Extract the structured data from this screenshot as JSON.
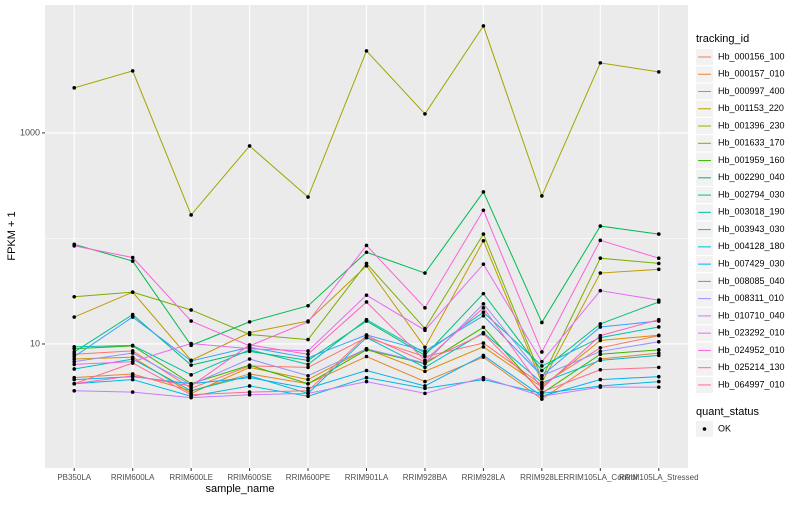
{
  "chart_data": {
    "type": "line",
    "x_label": "sample_name",
    "y_label": "FPKM + 1",
    "categories": [
      "PB350LA",
      "RRIM600LA",
      "RRIM600LE",
      "RRIM600SE",
      "RRIM600PE",
      "RRIM901LA",
      "RRIM928BA",
      "RRIM928LA",
      "RRIM928LE",
      "RRIM105LA_Control",
      "RRIM105LA_Stressed"
    ],
    "ylim": [
      0.668,
      16300
    ],
    "yticks": [
      10,
      1000
    ],
    "log_y": true,
    "grid": true,
    "legend_title": "tracking_id",
    "quant_status": {
      "title": "quant_status",
      "labels": [
        "OK"
      ]
    },
    "point_color": "#000000",
    "series": [
      {
        "name": "Hb_000156_100",
        "color": "#F8766D",
        "values": [
          8.0,
          8.6,
          3.8,
          6.2,
          6.0,
          11.5,
          7.6,
          10.2,
          4.1,
          9.2,
          12
        ]
      },
      {
        "name": "Hb_000157_010",
        "color": "#EA8331",
        "values": [
          4.8,
          5.2,
          3.6,
          5.2,
          4.2,
          7.6,
          4.4,
          7.5,
          3.0,
          7.2,
          8.2
        ]
      },
      {
        "name": "Hb_000997_400",
        "color": "#D89000",
        "values": [
          7.2,
          7.5,
          3.4,
          6.0,
          4.6,
          9.0,
          5.5,
          9.4,
          3.9,
          10.8,
          12.1
        ]
      },
      {
        "name": "Hb_001153_220",
        "color": "#C09B00",
        "values": [
          18,
          31,
          7.0,
          12.8,
          16.5,
          55,
          9.3,
          95,
          4.3,
          47,
          51
        ]
      },
      {
        "name": "Hb_001396_230",
        "color": "#A3A500",
        "values": [
          2673,
          3870,
          167,
          753,
          247,
          5985,
          1514,
          10330,
          253,
          4610,
          3785
        ]
      },
      {
        "name": "Hb_001633_170",
        "color": "#7CAE00",
        "values": [
          28,
          31,
          21,
          12.3,
          11,
          58,
          14,
          110,
          4.7,
          65,
          58
        ]
      },
      {
        "name": "Hb_001959_160",
        "color": "#39B600",
        "values": [
          9.0,
          9.6,
          4.2,
          6.3,
          4.2,
          8.8,
          6.5,
          14.4,
          3.4,
          8.0,
          8.8
        ]
      },
      {
        "name": "Hb_002290_040",
        "color": "#00BB4E",
        "values": [
          88,
          61,
          9.7,
          16.2,
          23,
          74,
          47,
          276,
          16.0,
          131,
          110
        ]
      },
      {
        "name": "Hb_002794_030",
        "color": "#00BF7D",
        "values": [
          8.4,
          19,
          6.3,
          8.5,
          7.0,
          16.5,
          7.8,
          30,
          5.6,
          15.5,
          25
        ]
      },
      {
        "name": "Hb_003018_190",
        "color": "#00C1A3",
        "values": [
          9.4,
          9.7,
          5.1,
          8.8,
          6.4,
          17,
          8.2,
          20,
          6.2,
          11.5,
          14.5
        ]
      },
      {
        "name": "Hb_003943_030",
        "color": "#00BFC4",
        "values": [
          5.8,
          7.2,
          3.6,
          5.0,
          3.4,
          11.5,
          6.0,
          12.8,
          4.3,
          7.0,
          7.8
        ]
      },
      {
        "name": "Hb_004128_180",
        "color": "#00BAE0",
        "values": [
          4.2,
          4.6,
          3.2,
          4.0,
          3.2,
          4.8,
          3.8,
          4.6,
          3.4,
          4.0,
          4.4
        ]
      },
      {
        "name": "Hb_007429_030",
        "color": "#00B0F6",
        "values": [
          4.6,
          4.9,
          4.2,
          4.8,
          3.8,
          5.6,
          4.0,
          7.8,
          3.2,
          4.6,
          4.9
        ]
      },
      {
        "name": "Hb_008085_040",
        "color": "#35A2FF",
        "values": [
          7.6,
          18,
          6.9,
          9.3,
          7.4,
          12.2,
          8.6,
          18.5,
          5.0,
          14.5,
          16.5
        ]
      },
      {
        "name": "Hb_008311_010",
        "color": "#9590FF",
        "values": [
          6.8,
          8.2,
          4.1,
          7.2,
          5.0,
          9.0,
          6.6,
          24,
          5.0,
          8.5,
          10.5
        ]
      },
      {
        "name": "Hb_010710_040",
        "color": "#C77CFF",
        "values": [
          3.6,
          3.5,
          3.1,
          3.3,
          3.4,
          4.4,
          3.4,
          4.8,
          3.2,
          3.9,
          3.9
        ]
      },
      {
        "name": "Hb_023292_010",
        "color": "#E76BF3",
        "values": [
          6.4,
          6.8,
          10.1,
          9.0,
          8.6,
          29,
          13.5,
          57,
          6.8,
          32,
          26
        ]
      },
      {
        "name": "Hb_024952_010",
        "color": "#FA62DB",
        "values": [
          85,
          66,
          16.5,
          9.6,
          16.2,
          86,
          22,
          185,
          8.4,
          96,
          65
        ]
      },
      {
        "name": "Hb_025214_130",
        "color": "#FF62BC",
        "values": [
          4.2,
          5.0,
          4.0,
          9.8,
          8.0,
          25,
          7.0,
          22,
          3.8,
          12,
          17
        ]
      },
      {
        "name": "Hb_064997_010",
        "color": "#FF6C91",
        "values": [
          4.2,
          6.6,
          3.3,
          3.5,
          3.6,
          12,
          6.8,
          12.5,
          3.5,
          5.7,
          6.0
        ]
      }
    ]
  }
}
